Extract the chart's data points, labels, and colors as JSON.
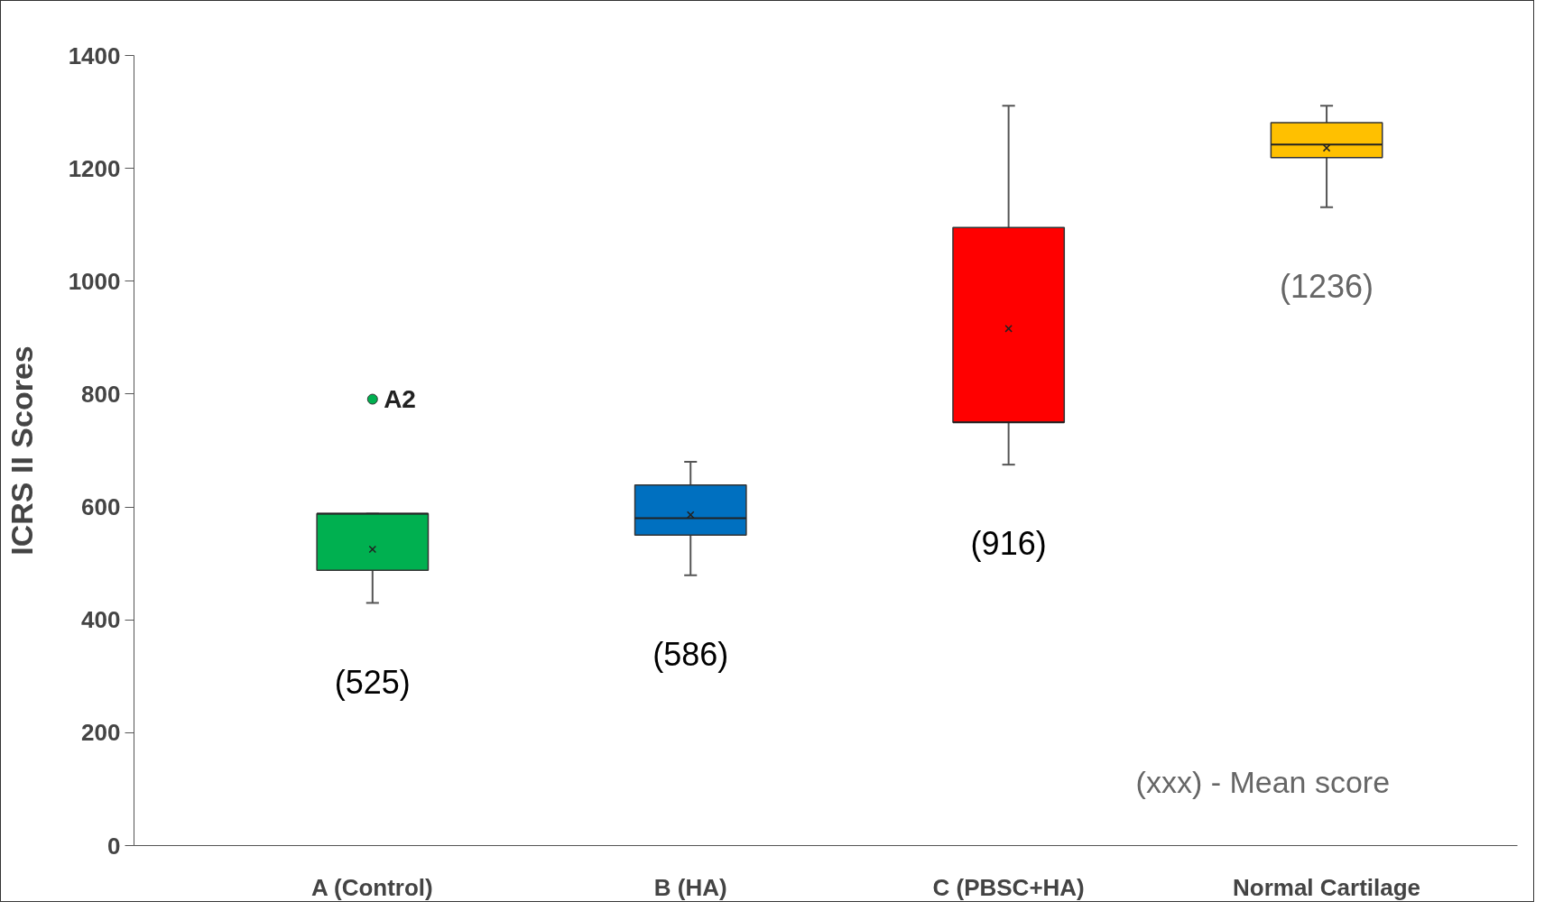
{
  "chart_data": {
    "type": "box",
    "ylabel": "ICRS II Scores",
    "categories": [
      "A (Control)",
      "B (HA)",
      "C (PBSC+HA)",
      "Normal Cartilage"
    ],
    "colors": [
      "#00b050",
      "#0070c0",
      "#ff0000",
      "#ffc000"
    ],
    "boxes": [
      {
        "low": 430,
        "q1": 488,
        "median": 588,
        "q3": 588,
        "high": 588,
        "mean": 525,
        "outliers": [
          791
        ]
      },
      {
        "low": 479,
        "q1": 550,
        "median": 580,
        "q3": 639,
        "high": 680,
        "mean": 586
      },
      {
        "low": 675,
        "q1": 750,
        "median": 750,
        "q3": 1095,
        "high": 1311,
        "mean": 916
      },
      {
        "low": 1131,
        "q1": 1219,
        "median": 1242,
        "q3": 1281,
        "high": 1311,
        "mean": 1236
      }
    ],
    "ylim": [
      0,
      1400
    ],
    "yticks": [
      0,
      200,
      400,
      600,
      800,
      1000,
      1200,
      1400
    ],
    "annotations": [
      "(525)",
      "(586)",
      "(916)",
      "(1236)",
      "A2",
      "(xxx) -  Mean score"
    ],
    "grid": false
  }
}
